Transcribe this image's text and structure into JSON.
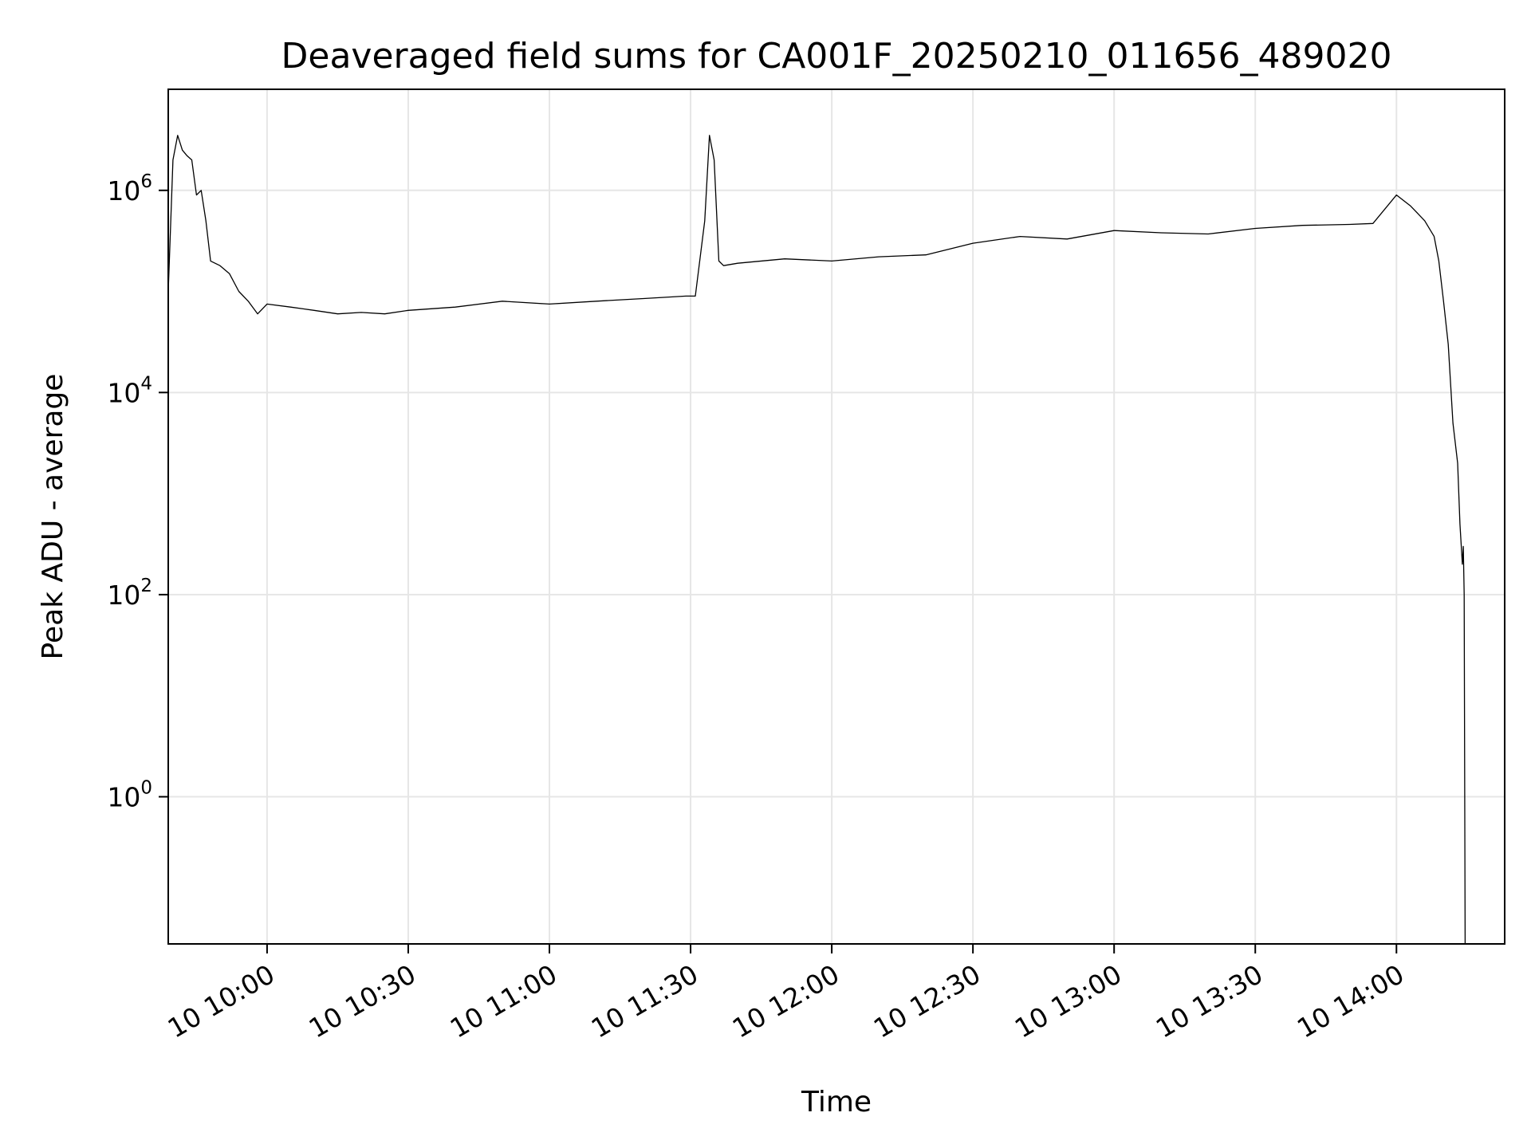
{
  "chart_data": {
    "type": "line",
    "title": "Deaveraged field sums for CA001F_20250210_011656_489020",
    "xlabel": "Time",
    "ylabel": "Peak ADU - average",
    "yscale": "log",
    "ylim": [
      0.035,
      10000000
    ],
    "xlim": [
      "09:39",
      "14:23"
    ],
    "grid": true,
    "line_color": "#000000",
    "grid_color": "#e6e6e6",
    "x_ticks": [
      {
        "time": "10:00",
        "label": "10 10:00"
      },
      {
        "time": "10:30",
        "label": "10 10:30"
      },
      {
        "time": "11:00",
        "label": "10 11:00"
      },
      {
        "time": "11:30",
        "label": "10 11:30"
      },
      {
        "time": "12:00",
        "label": "10 12:00"
      },
      {
        "time": "12:30",
        "label": "10 12:30"
      },
      {
        "time": "13:00",
        "label": "10 13:00"
      },
      {
        "time": "13:30",
        "label": "10 13:30"
      },
      {
        "time": "14:00",
        "label": "10 14:00"
      }
    ],
    "y_ticks": [
      {
        "value": 1,
        "base": "10",
        "exp": "0"
      },
      {
        "value": 100,
        "base": "10",
        "exp": "2"
      },
      {
        "value": 10000,
        "base": "10",
        "exp": "4"
      },
      {
        "value": 1000000,
        "base": "10",
        "exp": "6"
      }
    ],
    "series": [
      {
        "x": [
          "09:39",
          "09:40",
          "09:41",
          "09:42",
          "09:43",
          "09:44",
          "09:45",
          "09:46",
          "09:47",
          "09:48",
          "09:50",
          "09:52",
          "09:54",
          "09:56",
          "09:58",
          "10:00",
          "10:05",
          "10:10",
          "10:15",
          "10:20",
          "10:25",
          "10:30",
          "10:40",
          "10:50",
          "11:00",
          "11:10",
          "11:20",
          "11:29",
          "11:31",
          "11:33",
          "11:34",
          "11:35",
          "11:36",
          "11:37",
          "11:40",
          "11:50",
          "12:00",
          "12:10",
          "12:20",
          "12:30",
          "12:40",
          "12:50",
          "13:00",
          "13:10",
          "13:20",
          "13:30",
          "13:40",
          "13:50",
          "13:55",
          "14:00",
          "14:03",
          "14:06",
          "14:08",
          "14:09",
          "14:10",
          "14:11",
          "14:12",
          "14:13",
          "14:13.5",
          "14:14",
          "14:14.2",
          "14:14.4",
          "14:14.6"
        ],
        "y": [
          100000,
          2000000,
          3500000,
          2500000,
          2200000,
          2000000,
          900000,
          1000000,
          500000,
          200000,
          180000,
          150000,
          100000,
          80000,
          60000,
          75000,
          70000,
          65000,
          60000,
          62000,
          60000,
          65000,
          70000,
          80000,
          75000,
          80000,
          85000,
          90000,
          90000,
          500000,
          3500000,
          2000000,
          200000,
          180000,
          190000,
          210000,
          200000,
          220000,
          230000,
          300000,
          350000,
          330000,
          400000,
          380000,
          370000,
          420000,
          450000,
          460000,
          470000,
          900000,
          700000,
          500000,
          350000,
          200000,
          80000,
          30000,
          5000,
          2000,
          500,
          200,
          300,
          100,
          0.035
        ]
      }
    ]
  }
}
